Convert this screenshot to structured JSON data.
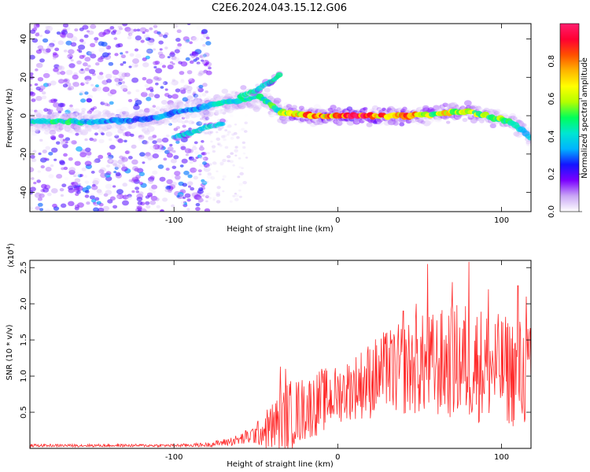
{
  "figure_title": "C2E6.2024.043.15.12.G06",
  "chart_data": [
    {
      "type": "heatmap",
      "title": "C2E6.2024.043.15.12.G06",
      "xlabel": "Height of straight line (km)",
      "ylabel": "Frequency (Hz)",
      "xlim": [
        -188,
        118
      ],
      "ylim": [
        -50,
        48
      ],
      "x_ticks": [
        -100,
        0,
        100
      ],
      "y_ticks": [
        -40,
        -20,
        0,
        20,
        40
      ],
      "grid": false,
      "colorbar": {
        "label": "Normalized spectral amplitude",
        "range": [
          0,
          1
        ],
        "ticks": [
          "0.0",
          "0.2",
          "0.4",
          "0.6",
          "0.8"
        ],
        "colors": [
          "#ffffff",
          "#c9a6f5",
          "#7b00ff",
          "#1414ff",
          "#00b4ff",
          "#00e6d2",
          "#00ff5a",
          "#b4ff00",
          "#ffff00",
          "#ffb400",
          "#ff5000",
          "#ff0032",
          "#ff1e6e"
        ]
      },
      "ridge": {
        "x": [
          -188,
          -180,
          -170,
          -160,
          -150,
          -140,
          -130,
          -120,
          -110,
          -100,
          -90,
          -80,
          -70,
          -60,
          -50,
          -45,
          -40,
          -35,
          -30,
          -20,
          -10,
          0,
          10,
          20,
          30,
          40,
          50,
          60,
          70,
          80,
          90,
          100,
          105,
          110,
          115,
          118
        ],
        "y": [
          -3,
          -3,
          -3,
          -3,
          -3,
          -3,
          -2.5,
          -2,
          -1,
          2,
          3,
          5,
          7,
          8,
          10,
          9,
          5,
          2,
          1,
          0.5,
          0,
          0,
          0,
          0,
          0,
          0,
          0.5,
          1,
          2,
          2,
          0,
          -2,
          -3,
          -6,
          -9,
          -12
        ],
        "amplitude": [
          0.35,
          0.4,
          0.45,
          0.4,
          0.35,
          0.3,
          0.3,
          0.3,
          0.3,
          0.3,
          0.32,
          0.35,
          0.4,
          0.45,
          0.42,
          0.4,
          0.45,
          0.5,
          0.6,
          0.75,
          0.72,
          0.7,
          0.9,
          0.85,
          0.7,
          0.75,
          0.65,
          0.6,
          0.62,
          0.6,
          0.55,
          0.5,
          0.45,
          0.42,
          0.4,
          0.35
        ]
      },
      "secondary_branch": {
        "x": [
          -100,
          -90,
          -80,
          -75,
          -70
        ],
        "y": [
          -11,
          -9,
          -6,
          -5,
          -4
        ]
      },
      "upper_branch": {
        "x": [
          -60,
          -50,
          -45,
          -40,
          -35
        ],
        "y": [
          10,
          13,
          16,
          18,
          22
        ]
      }
    },
    {
      "type": "line",
      "xlabel": "Height of straight line (km)",
      "ylabel": "SNR (10 * v/v)",
      "y_multiplier": "(x10",
      "y_multiplier_exp": "4",
      "y_multiplier_close": ")",
      "xlim": [
        -188,
        118
      ],
      "ylim": [
        0,
        2.6
      ],
      "x_ticks": [
        -100,
        0,
        100
      ],
      "y_ticks": [
        "0.5",
        "1.0",
        "1.5",
        "2.0",
        "2.5"
      ],
      "grid": false,
      "series": [
        {
          "color": "#ff2a2a",
          "envelope": {
            "x": [
              -188,
              -150,
              -100,
              -80,
              -70,
              -60,
              -50,
              -40,
              -30,
              -20,
              -10,
              0,
              10,
              20,
              30,
              40,
              50,
              60,
              70,
              80,
              90,
              100,
              110,
              118
            ],
            "mean": [
              0.04,
              0.04,
              0.04,
              0.05,
              0.08,
              0.12,
              0.2,
              0.3,
              0.45,
              0.55,
              0.65,
              0.75,
              0.85,
              0.95,
              1.05,
              1.1,
              1.15,
              1.15,
              1.2,
              1.2,
              1.15,
              1.1,
              1.05,
              1.0
            ],
            "amp": [
              0.02,
              0.02,
              0.02,
              0.03,
              0.05,
              0.08,
              0.15,
              0.35,
              0.5,
              0.45,
              0.45,
              0.4,
              0.45,
              0.55,
              0.6,
              0.65,
              0.7,
              0.75,
              0.8,
              0.85,
              0.8,
              0.75,
              0.8,
              0.7
            ]
          },
          "peaks": [
            [
              -35,
              1.13
            ],
            [
              -32,
              1.1
            ],
            [
              -10,
              1.1
            ],
            [
              30,
              1.6
            ],
            [
              40,
              1.9
            ],
            [
              48,
              2.0
            ],
            [
              55,
              2.55
            ],
            [
              70,
              2.3
            ],
            [
              80,
              2.58
            ],
            [
              92,
              2.2
            ],
            [
              110,
              2.25
            ],
            [
              115,
              2.1
            ]
          ]
        }
      ]
    }
  ]
}
